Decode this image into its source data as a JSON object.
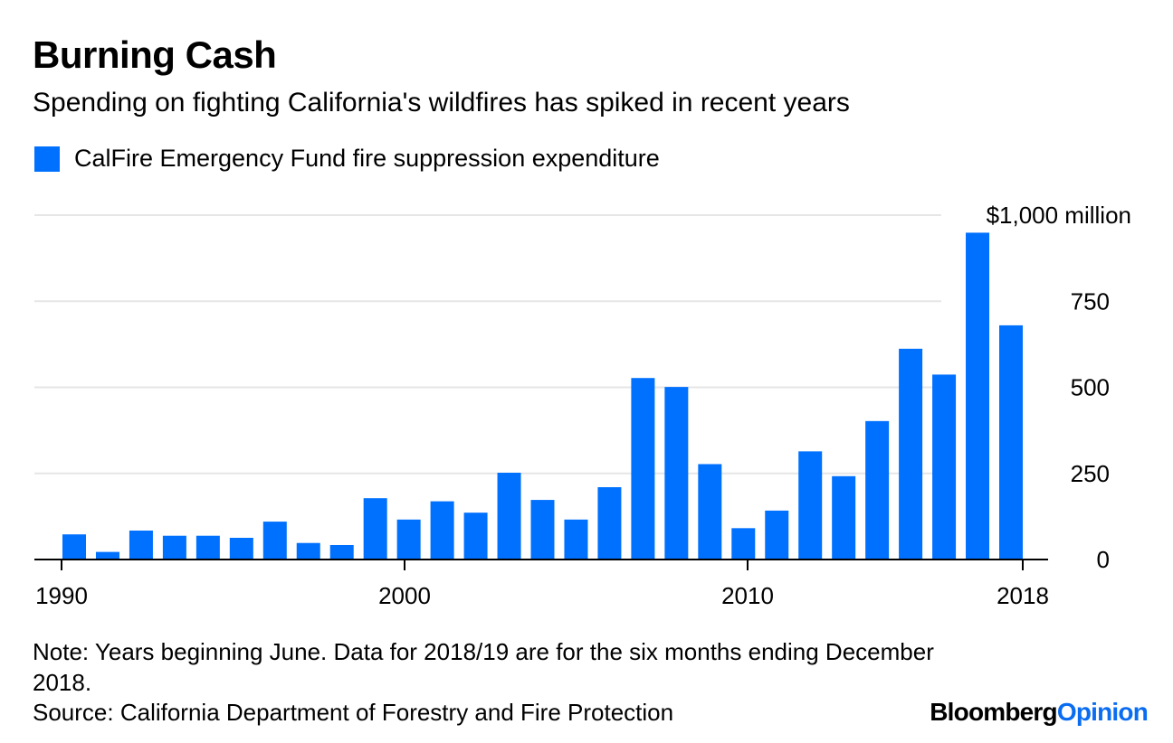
{
  "header": {
    "title": "Burning Cash",
    "subtitle": "Spending on fighting California's wildfires has spiked in recent years"
  },
  "legend": {
    "label": "CalFire Emergency Fund fire suppression expenditure",
    "color": "#0070ff"
  },
  "footer": {
    "note": "Note: Years beginning June. Data for 2018/19 are for the six months ending December 2018.",
    "source": "Source: California Department of Forestry and Fire Protection",
    "brand_bloomberg": "Bloomberg",
    "brand_opinion": "Opinion"
  },
  "chart_data": {
    "type": "bar",
    "title": "Burning Cash",
    "subtitle": "Spending on fighting California's wildfires has spiked in recent years",
    "categories": [
      1990,
      1991,
      1992,
      1993,
      1994,
      1995,
      1996,
      1997,
      1998,
      1999,
      2000,
      2001,
      2002,
      2003,
      2004,
      2005,
      2006,
      2007,
      2008,
      2009,
      2010,
      2011,
      2012,
      2013,
      2014,
      2015,
      2016,
      2017,
      2018
    ],
    "series": [
      {
        "name": "CalFire Emergency Fund fire suppression expenditure",
        "color": "#0070ff",
        "values": [
          73,
          22,
          84,
          69,
          69,
          63,
          110,
          48,
          42,
          178,
          116,
          169,
          136,
          252,
          173,
          116,
          210,
          527,
          501,
          277,
          91,
          142,
          314,
          242,
          402,
          612,
          537,
          949,
          680
        ]
      }
    ],
    "ylim": [
      0,
      1000
    ],
    "yticks": [
      0,
      250,
      500,
      750,
      1000
    ],
    "ytick_labels": [
      "0",
      "250",
      "500",
      "750",
      "$1,000 million"
    ],
    "xticks": [
      1990,
      2000,
      2010,
      2018
    ],
    "xtick_labels": [
      "1990",
      "2000",
      "2010",
      "2018"
    ],
    "grid": true,
    "axis_position": "right",
    "legend_position": "top-left"
  }
}
